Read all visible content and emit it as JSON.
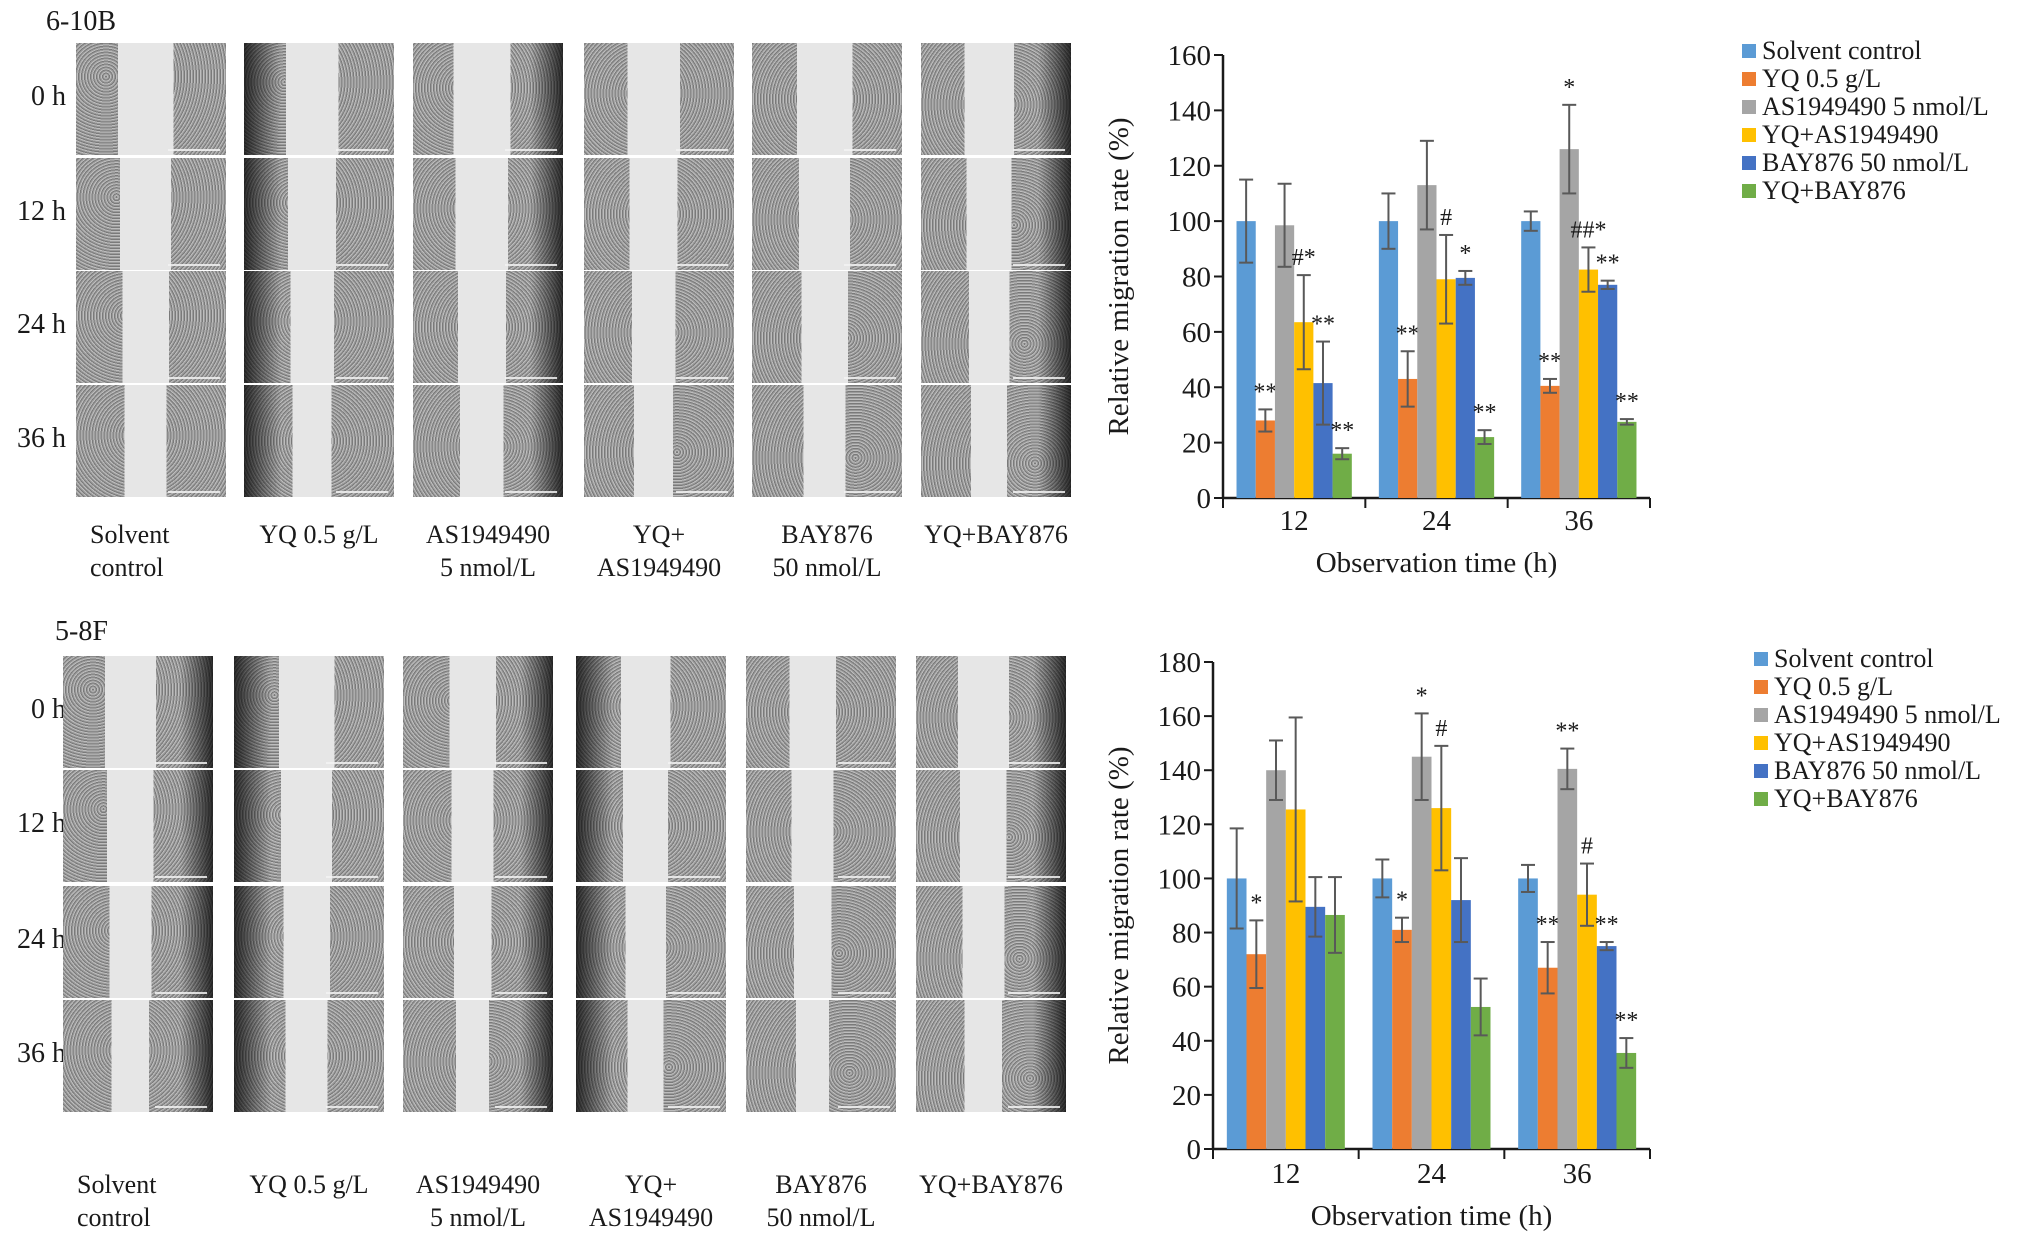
{
  "figure": {
    "colors": {
      "solvent_control": "#5b9bd5",
      "yq": "#ed7d31",
      "as": "#a5a5a5",
      "yq_as": "#ffc000",
      "bay": "#4472c4",
      "yq_bay": "#70ad47",
      "error_bar": "#595959"
    },
    "panels": [
      {
        "cell_line": "6-10B",
        "time_rows": [
          "0 h",
          "12 h",
          "24 h",
          "36 h"
        ],
        "group_labels": [
          "Solvent\ncontrol",
          "YQ 0.5 g/L",
          "AS1949490\n5 nmol/L",
          "YQ+\nAS1949490",
          "BAY876\n50 nmol/L",
          "YQ+BAY876"
        ]
      },
      {
        "cell_line": "5-8F",
        "time_rows": [
          "0 h",
          "12 h",
          "24 h",
          "36 h"
        ],
        "group_labels": [
          "Solvent\ncontrol",
          "YQ 0.5 g/L",
          "AS1949490\n5 nmol/L",
          "YQ+\nAS1949490",
          "BAY876\n50 nmol/L",
          "YQ+BAY876"
        ]
      }
    ]
  },
  "chart_data": [
    {
      "type": "bar",
      "title": "6-10B",
      "xlabel": "Observation time (h)",
      "ylabel": "Relative migration rate (%)",
      "categories": [
        "12",
        "24",
        "36"
      ],
      "ylim": [
        0,
        160
      ],
      "yticks": [
        0,
        20,
        40,
        60,
        80,
        100,
        120,
        140,
        160
      ],
      "grid": false,
      "legend_position": "top-right",
      "series": [
        {
          "name": "Solvent control",
          "color_key": "solvent_control",
          "values": [
            100,
            100,
            100
          ],
          "errors": [
            15,
            10,
            3.5
          ],
          "annotations": [
            "",
            "",
            ""
          ]
        },
        {
          "name": "YQ 0.5 g/L",
          "color_key": "yq",
          "values": [
            28,
            43,
            40.5
          ],
          "errors": [
            4,
            10,
            2.5
          ],
          "annotations": [
            "**",
            "**",
            "**"
          ]
        },
        {
          "name": "AS1949490 5 nmol/L",
          "color_key": "as",
          "values": [
            98.5,
            113,
            126
          ],
          "errors": [
            15,
            16,
            16
          ],
          "annotations": [
            "",
            "",
            "*"
          ]
        },
        {
          "name": "YQ+AS1949490",
          "color_key": "yq_as",
          "values": [
            63.5,
            79,
            82.5
          ],
          "errors": [
            17,
            16,
            8
          ],
          "annotations": [
            "#*",
            "#",
            "##*"
          ]
        },
        {
          "name": "BAY876 50 nmol/L",
          "color_key": "bay",
          "values": [
            41.5,
            79.5,
            77
          ],
          "errors": [
            15,
            2.5,
            1.5
          ],
          "annotations": [
            "**",
            "*",
            "**"
          ]
        },
        {
          "name": "YQ+BAY876",
          "color_key": "yq_bay",
          "values": [
            16,
            22,
            27.5
          ],
          "errors": [
            2,
            2.5,
            1
          ],
          "annotations": [
            "**",
            "**",
            "**"
          ]
        }
      ]
    },
    {
      "type": "bar",
      "title": "5-8F",
      "xlabel": "Observation time (h)",
      "ylabel": "Relative migration rate (%)",
      "categories": [
        "12",
        "24",
        "36"
      ],
      "ylim": [
        0,
        180
      ],
      "yticks": [
        0,
        20,
        40,
        60,
        80,
        100,
        120,
        140,
        160,
        180
      ],
      "grid": false,
      "legend_position": "top-right",
      "series": [
        {
          "name": "Solvent control",
          "color_key": "solvent_control",
          "values": [
            100,
            100,
            100
          ],
          "errors": [
            18.5,
            7,
            5
          ],
          "annotations": [
            "",
            "",
            ""
          ]
        },
        {
          "name": "YQ 0.5 g/L",
          "color_key": "yq",
          "values": [
            72,
            81,
            67
          ],
          "errors": [
            12.5,
            4.5,
            9.5
          ],
          "annotations": [
            "*",
            "*",
            "**"
          ]
        },
        {
          "name": "AS1949490 5 nmol/L",
          "color_key": "as",
          "values": [
            140,
            145,
            140.5
          ],
          "errors": [
            11,
            16,
            7.5
          ],
          "annotations": [
            "",
            "*",
            "**"
          ]
        },
        {
          "name": "YQ+AS1949490",
          "color_key": "yq_as",
          "values": [
            125.5,
            126,
            94
          ],
          "errors": [
            34,
            23,
            11.5
          ],
          "annotations": [
            "",
            "#",
            "#"
          ]
        },
        {
          "name": "BAY876 50 nmol/L",
          "color_key": "bay",
          "values": [
            89.5,
            92,
            75
          ],
          "errors": [
            11,
            15.5,
            1.5
          ],
          "annotations": [
            "",
            "",
            "**"
          ]
        },
        {
          "name": "YQ+BAY876",
          "color_key": "yq_bay",
          "values": [
            86.5,
            52.5,
            35.5
          ],
          "errors": [
            14,
            10.5,
            5.5
          ],
          "annotations": [
            "",
            "",
            "**"
          ]
        }
      ]
    }
  ]
}
